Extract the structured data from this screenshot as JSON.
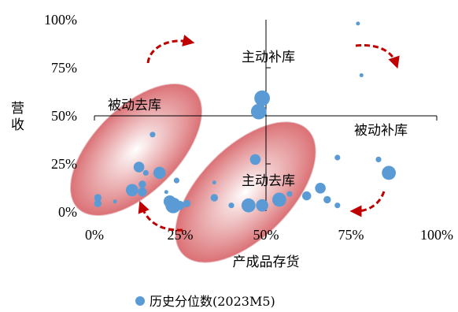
{
  "colors": {
    "point": "#5b9bd5",
    "ellipse": "#d9696e",
    "arrow": "#c00000",
    "axis": "#000000"
  },
  "chart_data": {
    "type": "scatter",
    "xlabel": "产成品存货",
    "ylabel": "营收",
    "xlim": [
      0,
      100
    ],
    "ylim": [
      0,
      100
    ],
    "x_ticks": [
      "0%",
      "25%",
      "50%",
      "75%",
      "100%"
    ],
    "y_ticks": [
      "0%",
      "25%",
      "50%",
      "75%",
      "100%"
    ],
    "quadrant_labels": {
      "top": "主动补库",
      "left": "被动去库",
      "right": "被动补库",
      "bottom": "主动去库"
    },
    "legend": {
      "position": "bottom",
      "label": "历史分位数(2023M5)"
    },
    "series": [
      {
        "name": "历史分位数(2023M5)",
        "points": [
          {
            "x": 77,
            "y": 98,
            "size": 1
          },
          {
            "x": 78,
            "y": 71,
            "size": 1
          },
          {
            "x": 49,
            "y": 59,
            "size": 8
          },
          {
            "x": 48,
            "y": 52,
            "size": 8
          },
          {
            "x": 17,
            "y": 40,
            "size": 2
          },
          {
            "x": 47,
            "y": 27,
            "size": 5
          },
          {
            "x": 71,
            "y": 28,
            "size": 2
          },
          {
            "x": 83,
            "y": 27,
            "size": 2
          },
          {
            "x": 86,
            "y": 20,
            "size": 7
          },
          {
            "x": 13,
            "y": 23,
            "size": 5
          },
          {
            "x": 19,
            "y": 20,
            "size": 6
          },
          {
            "x": 15,
            "y": 20,
            "size": 2
          },
          {
            "x": 24,
            "y": 16,
            "size": 2
          },
          {
            "x": 14,
            "y": 14,
            "size": 3
          },
          {
            "x": 11,
            "y": 11,
            "size": 6
          },
          {
            "x": 14,
            "y": 10,
            "size": 4
          },
          {
            "x": 21,
            "y": 10,
            "size": 1
          },
          {
            "x": 1,
            "y": 7,
            "size": 3
          },
          {
            "x": 1,
            "y": 4,
            "size": 3
          },
          {
            "x": 6,
            "y": 5,
            "size": 1
          },
          {
            "x": 22,
            "y": 5,
            "size": 6
          },
          {
            "x": 23,
            "y": 3,
            "size": 8
          },
          {
            "x": 25,
            "y": 3,
            "size": 4
          },
          {
            "x": 27,
            "y": 4,
            "size": 3
          },
          {
            "x": 35,
            "y": 15,
            "size": 1
          },
          {
            "x": 35,
            "y": 7,
            "size": 3
          },
          {
            "x": 40,
            "y": 3,
            "size": 2
          },
          {
            "x": 45,
            "y": 3,
            "size": 7
          },
          {
            "x": 49,
            "y": 3,
            "size": 6
          },
          {
            "x": 54,
            "y": 6,
            "size": 7
          },
          {
            "x": 57,
            "y": 9,
            "size": 2
          },
          {
            "x": 62,
            "y": 8,
            "size": 4
          },
          {
            "x": 66,
            "y": 12,
            "size": 5
          },
          {
            "x": 68,
            "y": 6,
            "size": 3
          },
          {
            "x": 71,
            "y": 3,
            "size": 2
          }
        ]
      }
    ]
  }
}
